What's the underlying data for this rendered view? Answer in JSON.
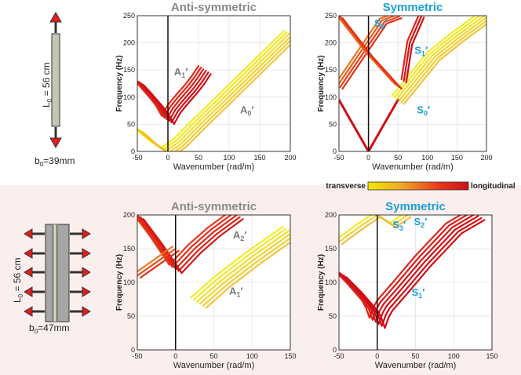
{
  "chart_data": [
    {
      "type": "line",
      "title": "Anti-symmetric",
      "title_color": "#8a8a8a",
      "xlabel": "Wavenumber (rad/m)",
      "ylabel": "Frequency (Hz)",
      "xlim": [
        -50,
        200
      ],
      "ylim": [
        0,
        250
      ],
      "xticks": [
        "-50",
        "0",
        "50",
        "100",
        "150",
        "200"
      ],
      "yticks": [
        "0",
        "50",
        "100",
        "150",
        "200",
        "250"
      ],
      "grid": true,
      "annotations": [
        {
          "sym": "A",
          "sub": "1",
          "x": 10,
          "y": 140,
          "color": "#7a7a7a"
        },
        {
          "sym": "A",
          "sub": "0",
          "x": 118,
          "y": 70,
          "color": "#7a7a7a"
        }
      ],
      "series": [
        {
          "x": [
            -50,
            -40,
            -30,
            -20,
            -10,
            -5,
            0,
            5,
            10,
            20,
            30,
            40,
            50,
            60
          ],
          "y": [
            130,
            118,
            105,
            92,
            78,
            68,
            58,
            68,
            78,
            92,
            105,
            118,
            133,
            150
          ],
          "tone": 0.9,
          "bands": 6
        },
        {
          "x": [
            -50,
            -40,
            -30,
            -20,
            -10,
            0,
            10,
            20,
            50,
            100,
            150,
            200
          ],
          "y": [
            42,
            32,
            22,
            13,
            5,
            0,
            8,
            16,
            50,
            105,
            160,
            215
          ],
          "tone": 0.1,
          "bands": 6
        }
      ]
    },
    {
      "type": "line",
      "title": "Symmetric",
      "title_color": "#1a9fd8",
      "xlabel": "Wavenumber (rad/m)",
      "ylabel": "Frequency (Hz)",
      "xlim": [
        -50,
        200
      ],
      "ylim": [
        0,
        250
      ],
      "xticks": [
        "-50",
        "0",
        "50",
        "100",
        "150",
        "200"
      ],
      "yticks": [
        "0",
        "50",
        "100",
        "150",
        "200",
        "250"
      ],
      "grid": true,
      "annotations": [
        {
          "sym": "S",
          "sub": "2",
          "x": 10,
          "y": 230,
          "color": "#1a9fd8"
        },
        {
          "sym": "S",
          "sub": "1",
          "x": 78,
          "y": 180,
          "color": "#1a9fd8"
        },
        {
          "sym": "S",
          "sub": "0",
          "x": 82,
          "y": 70,
          "color": "#1a9fd8"
        }
      ],
      "series": [
        {
          "x": [
            -50,
            0,
            50
          ],
          "y": [
            95,
            0,
            95
          ],
          "tone": 1.0,
          "bands": 1
        },
        {
          "x": [
            50,
            80,
            110,
            150,
            200
          ],
          "y": [
            95,
            135,
            175,
            210,
            250
          ],
          "tone": 0.1,
          "bands": 6
        },
        {
          "x": [
            60,
            65,
            70,
            80,
            90
          ],
          "y": [
            130,
            165,
            200,
            225,
            250
          ],
          "tone": 0.95,
          "bands": 3
        },
        {
          "x": [
            -50,
            -25,
            0,
            25,
            50
          ],
          "y": [
            120,
            160,
            200,
            240,
            250
          ],
          "tone": 0.6,
          "bands": 4
        },
        {
          "x": [
            -50,
            -25,
            0,
            25,
            50
          ],
          "y": [
            250,
            215,
            180,
            150,
            120
          ],
          "tone": 0.6,
          "bands": 4
        }
      ]
    },
    {
      "type": "line",
      "title": "Anti-symmetric",
      "title_color": "#8a8a8a",
      "xlabel": "Wavenumber (rad/m)",
      "ylabel": "Frequency (Hz)",
      "xlim": [
        -50,
        150
      ],
      "ylim": [
        0,
        200
      ],
      "xticks": [
        "-50",
        "0",
        "50",
        "100",
        "150"
      ],
      "yticks": [
        "0",
        "50",
        "100",
        "150",
        "200"
      ],
      "grid": true,
      "annotations": [
        {
          "sym": "A",
          "sub": "2",
          "x": 75,
          "y": 165,
          "color": "#7a7a7a"
        },
        {
          "sym": "A",
          "sub": "1",
          "x": 70,
          "y": 82,
          "color": "#7a7a7a"
        }
      ],
      "series": [
        {
          "x": [
            -50,
            -25,
            0,
            25,
            50,
            80
          ],
          "y": [
            200,
            162,
            120,
            150,
            175,
            200
          ],
          "tone": 0.8,
          "bands": 5
        },
        {
          "x": [
            -50,
            -25,
            0
          ],
          "y": [
            110,
            130,
            150
          ],
          "tone": 0.6,
          "bands": 3
        },
        {
          "x": [
            30,
            60,
            100,
            150
          ],
          "y": [
            70,
            100,
            135,
            175
          ],
          "tone": 0.1,
          "bands": 6
        }
      ]
    },
    {
      "type": "line",
      "title": "Symmetric",
      "title_color": "#1a9fd8",
      "xlabel": "Wavenumber (rad/m)",
      "ylabel": "Frequency (Hz)",
      "xlim": [
        -50,
        150
      ],
      "ylim": [
        0,
        200
      ],
      "xticks": [
        "-50",
        "0",
        "50",
        "100",
        "150"
      ],
      "yticks": [
        "0",
        "50",
        "100",
        "150",
        "200"
      ],
      "grid": true,
      "annotations": [
        {
          "sym": "S",
          "sub": "3",
          "x": 20,
          "y": 180,
          "color": "#1a9fd8"
        },
        {
          "sym": "S",
          "sub": "2",
          "x": 48,
          "y": 185,
          "color": "#1a9fd8"
        },
        {
          "sym": "S",
          "sub": "1",
          "x": 45,
          "y": 80,
          "color": "#1a9fd8"
        }
      ],
      "series": [
        {
          "x": [
            -50,
            -30,
            -10,
            -5,
            0,
            5,
            10,
            30,
            60,
            100,
            130
          ],
          "y": [
            115,
            92,
            66,
            56,
            40,
            56,
            66,
            92,
            132,
            180,
            200
          ],
          "tone": 0.95,
          "bands": 6
        },
        {
          "x": [
            -50,
            -20,
            0,
            20,
            40
          ],
          "y": [
            160,
            185,
            200,
            185,
            200
          ],
          "tone": 0.15,
          "bands": 3
        }
      ]
    }
  ],
  "colorbar": {
    "left_label": "transverse",
    "right_label": "longitudinal",
    "stops": [
      "#f0e800",
      "#f3a322",
      "#e83a1c",
      "#d00d15"
    ]
  },
  "top_plate": {
    "length_label": "L",
    "length_sub": "0",
    "length_value": " = 56 cm",
    "width_label": "b",
    "width_sub": "0",
    "width_value": "=39mm"
  },
  "bottom_plate": {
    "length_label": "L",
    "length_sub": "0",
    "length_value": " = 56 cm",
    "width_label": "b",
    "width_sub": "0",
    "width_value": "=47mm"
  }
}
